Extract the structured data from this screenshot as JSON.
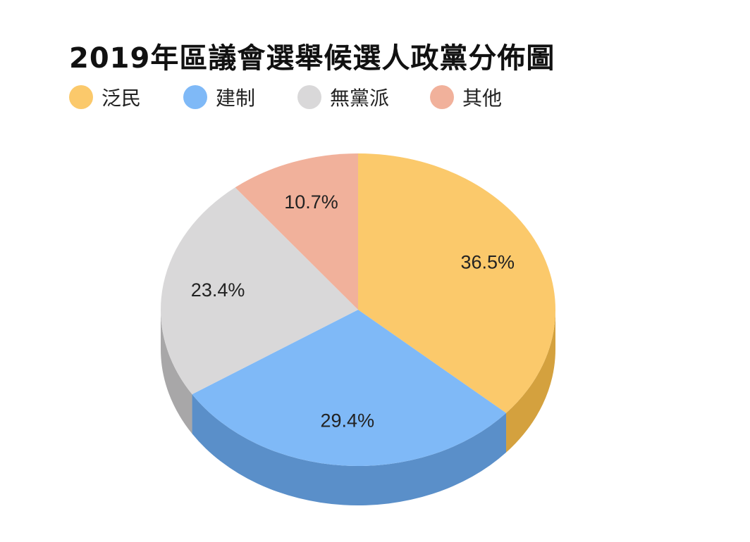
{
  "chart_data": {
    "type": "pie",
    "title": "2019年區議會選舉候選人政黨分佈圖",
    "legend_position": "top-left",
    "slices": [
      {
        "label": "泛民",
        "value": 36.5,
        "display": "36.5%",
        "color": "#FBC96B",
        "side_color": "#D4A13E"
      },
      {
        "label": "建制",
        "value": 29.4,
        "display": "29.4%",
        "color": "#7FB9F7",
        "side_color": "#5A8FC9"
      },
      {
        "label": "無黨派",
        "value": 23.4,
        "display": "23.4%",
        "color": "#D9D8D9",
        "side_color": "#A8A7A8"
      },
      {
        "label": "其他",
        "value": 10.7,
        "display": "10.7%",
        "color": "#F1B19B",
        "side_color": "#C98F7B"
      }
    ]
  }
}
